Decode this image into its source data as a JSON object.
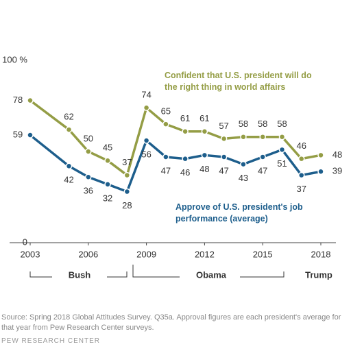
{
  "chart_data": {
    "type": "line",
    "x": [
      2003,
      2005,
      2006,
      2007,
      2008,
      2009,
      2010,
      2011,
      2012,
      2013,
      2014,
      2015,
      2016,
      2017,
      2018
    ],
    "series": [
      {
        "name": "Confident that U.S. president will do the right thing in world affairs",
        "color": "#949d45",
        "values": [
          78,
          62,
          50,
          45,
          37,
          74,
          65,
          61,
          61,
          57,
          58,
          58,
          58,
          46,
          48
        ]
      },
      {
        "name": "Approve of U.S. president's job performance (average)",
        "color": "#1d5e8c",
        "values": [
          59,
          42,
          36,
          32,
          28,
          56,
          47,
          46,
          48,
          47,
          43,
          47,
          51,
          37,
          39
        ]
      }
    ],
    "xlim": [
      2003,
      2018
    ],
    "xticks": [
      2003,
      2006,
      2009,
      2012,
      2015,
      2018
    ],
    "ylim": [
      0,
      100
    ],
    "yticks": [
      0,
      {
        "value": 100,
        "label": "100 %"
      }
    ],
    "eras": [
      "Bush",
      "Obama",
      "Trump"
    ],
    "source": "Source: Spring 2018 Global Attitudes Survey. Q35a. Approval figures are each president's average for that year from Pew Research Center surveys.",
    "credit": "PEW RESEARCH CENTER"
  }
}
